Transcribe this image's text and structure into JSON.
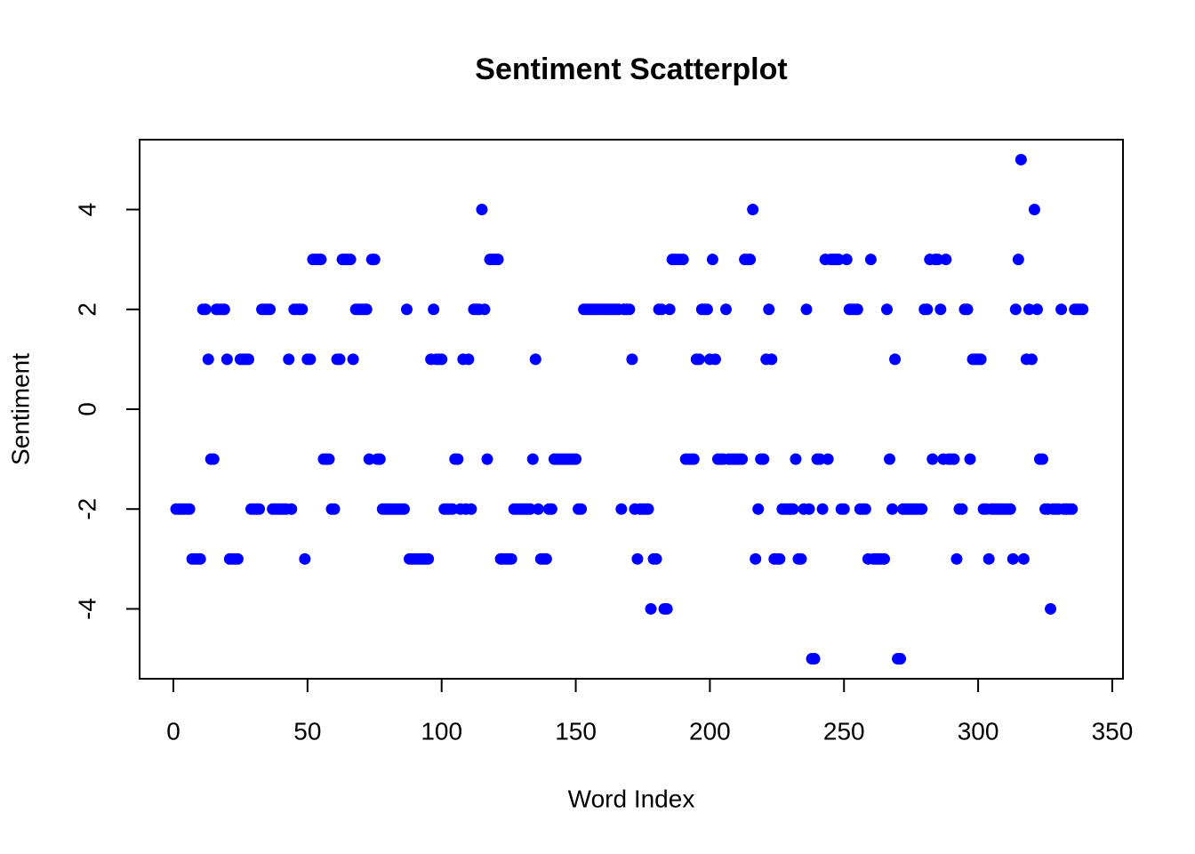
{
  "chart_data": {
    "type": "scatter",
    "title": "Sentiment Scatterplot",
    "xlabel": "Word Index",
    "ylabel": "Sentiment",
    "color": "#0000ff",
    "x": [
      1,
      2,
      3,
      4,
      5,
      6,
      7,
      8,
      9,
      10,
      11,
      12,
      13,
      14,
      15,
      16,
      17,
      18,
      19,
      20,
      21,
      22,
      23,
      24,
      25,
      26,
      27,
      28,
      29,
      30,
      31,
      32,
      33,
      34,
      35,
      36,
      37,
      38,
      39,
      40,
      41,
      42,
      43,
      44,
      45,
      46,
      47,
      48,
      49,
      50,
      51,
      52,
      53,
      54,
      55,
      56,
      57,
      58,
      59,
      60,
      61,
      62,
      63,
      64,
      65,
      66,
      67,
      68,
      69,
      70,
      71,
      72,
      73,
      74,
      75,
      76,
      77,
      78,
      79,
      80,
      81,
      82,
      83,
      84,
      85,
      86,
      87,
      88,
      89,
      90,
      91,
      92,
      93,
      94,
      95,
      96,
      97,
      98,
      99,
      100,
      101,
      102,
      103,
      104,
      105,
      106,
      107,
      108,
      109,
      110,
      111,
      112,
      113,
      114,
      115,
      116,
      117,
      118,
      119,
      120,
      121,
      122,
      123,
      124,
      125,
      126,
      127,
      128,
      129,
      130,
      131,
      132,
      133,
      134,
      135,
      136,
      137,
      138,
      139,
      140,
      141,
      142,
      143,
      144,
      145,
      146,
      147,
      148,
      149,
      150,
      151,
      152,
      153,
      154,
      155,
      156,
      157,
      158,
      159,
      160,
      161,
      162,
      163,
      164,
      165,
      166,
      167,
      168,
      169,
      170,
      171,
      172,
      173,
      174,
      175,
      176,
      177,
      178,
      179,
      180,
      181,
      182,
      183,
      184,
      185,
      186,
      187,
      188,
      189,
      190,
      191,
      192,
      193,
      194,
      195,
      196,
      197,
      198,
      199,
      200,
      201,
      202,
      203,
      204,
      205,
      206,
      207,
      208,
      209,
      210,
      211,
      212,
      213,
      214,
      215,
      216,
      217,
      218,
      219,
      220,
      221,
      222,
      223,
      224,
      225,
      226,
      227,
      228,
      229,
      230,
      231,
      232,
      233,
      234,
      235,
      236,
      237,
      238,
      239,
      240,
      241,
      242,
      243,
      244,
      245,
      246,
      247,
      248,
      249,
      250,
      251,
      252,
      253,
      254,
      255,
      256,
      257,
      258,
      259,
      260,
      261,
      262,
      263,
      264,
      265,
      266,
      267,
      268,
      269,
      270,
      271,
      272,
      273,
      274,
      275,
      276,
      277,
      278,
      279,
      280,
      281,
      282,
      283,
      284,
      285,
      286,
      287,
      288,
      289,
      290,
      291,
      292,
      293,
      294,
      295,
      296,
      297,
      298,
      299,
      300,
      301,
      302,
      303,
      304,
      305,
      306,
      307,
      308,
      309,
      310,
      311,
      312,
      313,
      314,
      315,
      316,
      317,
      318,
      319,
      320,
      321,
      322,
      323,
      324,
      325,
      326,
      327,
      328,
      329,
      330,
      331,
      332,
      333,
      334,
      335,
      336,
      337,
      338,
      339
    ],
    "values": [
      -2,
      -2,
      -2,
      -2,
      -2,
      -2,
      -3,
      -3,
      -3,
      -3,
      2,
      2,
      1,
      -1,
      -1,
      2,
      2,
      2,
      2,
      1,
      -3,
      -3,
      -3,
      -3,
      1,
      1,
      1,
      1,
      -2,
      -2,
      -2,
      -2,
      2,
      2,
      2,
      2,
      -2,
      -2,
      -2,
      -2,
      -2,
      -2,
      1,
      -2,
      2,
      2,
      2,
      2,
      -3,
      1,
      1,
      3,
      3,
      3,
      3,
      -1,
      -1,
      -1,
      -2,
      -2,
      1,
      1,
      3,
      3,
      3,
      3,
      1,
      2,
      2,
      2,
      2,
      2,
      -1,
      3,
      3,
      -1,
      -1,
      -2,
      -2,
      -2,
      -2,
      -2,
      -2,
      -2,
      -2,
      -2,
      2,
      -3,
      -3,
      -3,
      -3,
      -3,
      -3,
      -3,
      -3,
      1,
      2,
      1,
      1,
      1,
      -2,
      -2,
      -2,
      -2,
      -1,
      -1,
      -2,
      1,
      -2,
      1,
      -2,
      2,
      2,
      2,
      4,
      2,
      -1,
      3,
      3,
      3,
      3,
      -3,
      -3,
      -3,
      -3,
      -3,
      -2,
      -2,
      -2,
      -2,
      -2,
      -2,
      -2,
      -1,
      1,
      -2,
      -3,
      -3,
      -3,
      -2,
      -2,
      -1,
      -1,
      -1,
      -1,
      -1,
      -1,
      -1,
      -1,
      -1,
      -2,
      -2,
      2,
      2,
      2,
      2,
      2,
      2,
      2,
      2,
      2,
      2,
      2,
      2,
      2,
      2,
      -2,
      2,
      2,
      2,
      1,
      -2,
      -3,
      -2,
      -2,
      -2,
      -2,
      -4,
      -3,
      -3,
      2,
      2,
      -4,
      -4,
      2,
      3,
      3,
      3,
      3,
      3,
      -1,
      -1,
      -1,
      -1,
      1,
      1,
      2,
      2,
      2,
      1,
      3,
      1,
      -1,
      -1,
      -1,
      2,
      -1,
      -1,
      -1,
      -1,
      -1,
      -1,
      3,
      3,
      3,
      4,
      -3,
      -2,
      -1,
      -1,
      1,
      2,
      1,
      -3,
      -3,
      -3,
      -2,
      -2,
      -2,
      -2,
      -2,
      -1,
      -3,
      -3,
      -2,
      2,
      -2,
      -5,
      -5,
      -1,
      -1,
      -2,
      3,
      -1,
      3,
      3,
      3,
      3,
      -2,
      -2,
      3,
      2,
      2,
      2,
      2,
      -2,
      -2,
      -2,
      -3,
      3,
      -3,
      -3,
      -3,
      -3,
      -3,
      2,
      -1,
      -2,
      1,
      -5,
      -5,
      -2,
      -2,
      -2,
      -2,
      -2,
      -2,
      -2,
      -2,
      2,
      2,
      3,
      -1,
      3,
      3,
      2,
      -1,
      3,
      -1,
      -1,
      -1,
      -3,
      -2,
      -2,
      2,
      2,
      -1,
      1,
      1,
      1,
      1,
      -2,
      -2,
      -3,
      -2,
      -2,
      -2,
      -2,
      -2,
      -2,
      -2,
      -2,
      -3,
      2,
      3,
      5,
      -3,
      1,
      2,
      1,
      4,
      2,
      -1,
      -1,
      -2,
      -2,
      -4,
      -2,
      -2,
      -2,
      2,
      -2,
      -2,
      -2,
      -2,
      2,
      2,
      2,
      2
    ],
    "xlim": [
      -12.6,
      354
    ],
    "ylim": [
      -5.4,
      5.4
    ],
    "xticks": [
      0,
      50,
      100,
      150,
      200,
      250,
      300,
      350
    ],
    "yticks": [
      -4,
      -2,
      0,
      2,
      4
    ]
  }
}
